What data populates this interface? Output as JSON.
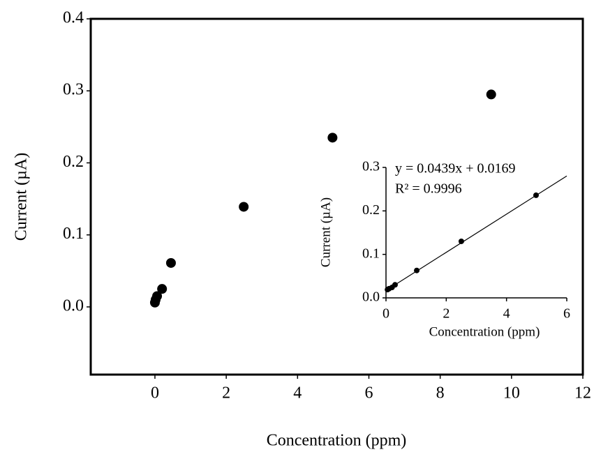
{
  "chart_data": [
    {
      "type": "scatter",
      "x_label": "Concentration (ppm)",
      "y_label": "Current (µA)",
      "xlim": [
        -1.8,
        12
      ],
      "ylim": [
        -0.094,
        0.4
      ],
      "xticks": [
        0,
        2,
        4,
        6,
        8,
        10,
        12
      ],
      "yticks": [
        {
          "value": 0,
          "label": "0.0"
        },
        0.1,
        0.2,
        0.3,
        0.4
      ],
      "series": [
        {
          "color": "#000000",
          "x": [
            0,
            0.02,
            0.06,
            0.2,
            0.45,
            2.49,
            4.98,
            9.43
          ],
          "values": [
            0.006,
            0.01,
            0.015,
            0.025,
            0.061,
            0.139,
            0.235,
            0.295
          ]
        }
      ]
    },
    {
      "type": "scatter",
      "x_label": "Concentration (ppm)",
      "y_label": "Current (µA)",
      "xlim": [
        0,
        6
      ],
      "ylim": [
        0,
        0.3
      ],
      "xticks": [
        0,
        2,
        4,
        6
      ],
      "yticks": [
        {
          "value": 0,
          "label": "0.0"
        },
        0.1,
        0.2,
        0.3
      ],
      "annotations": [
        "y = 0.0439x + 0.0169",
        "R² = 0.9996"
      ],
      "trendline": {
        "slope": 0.0439,
        "intercept": 0.0169
      },
      "series": [
        {
          "color": "#000000",
          "x": [
            0.05,
            0.1,
            0.2,
            0.3,
            1.02,
            2.5,
            4.98
          ],
          "values": [
            0.019,
            0.021,
            0.024,
            0.03,
            0.063,
            0.13,
            0.236
          ]
        }
      ]
    }
  ]
}
